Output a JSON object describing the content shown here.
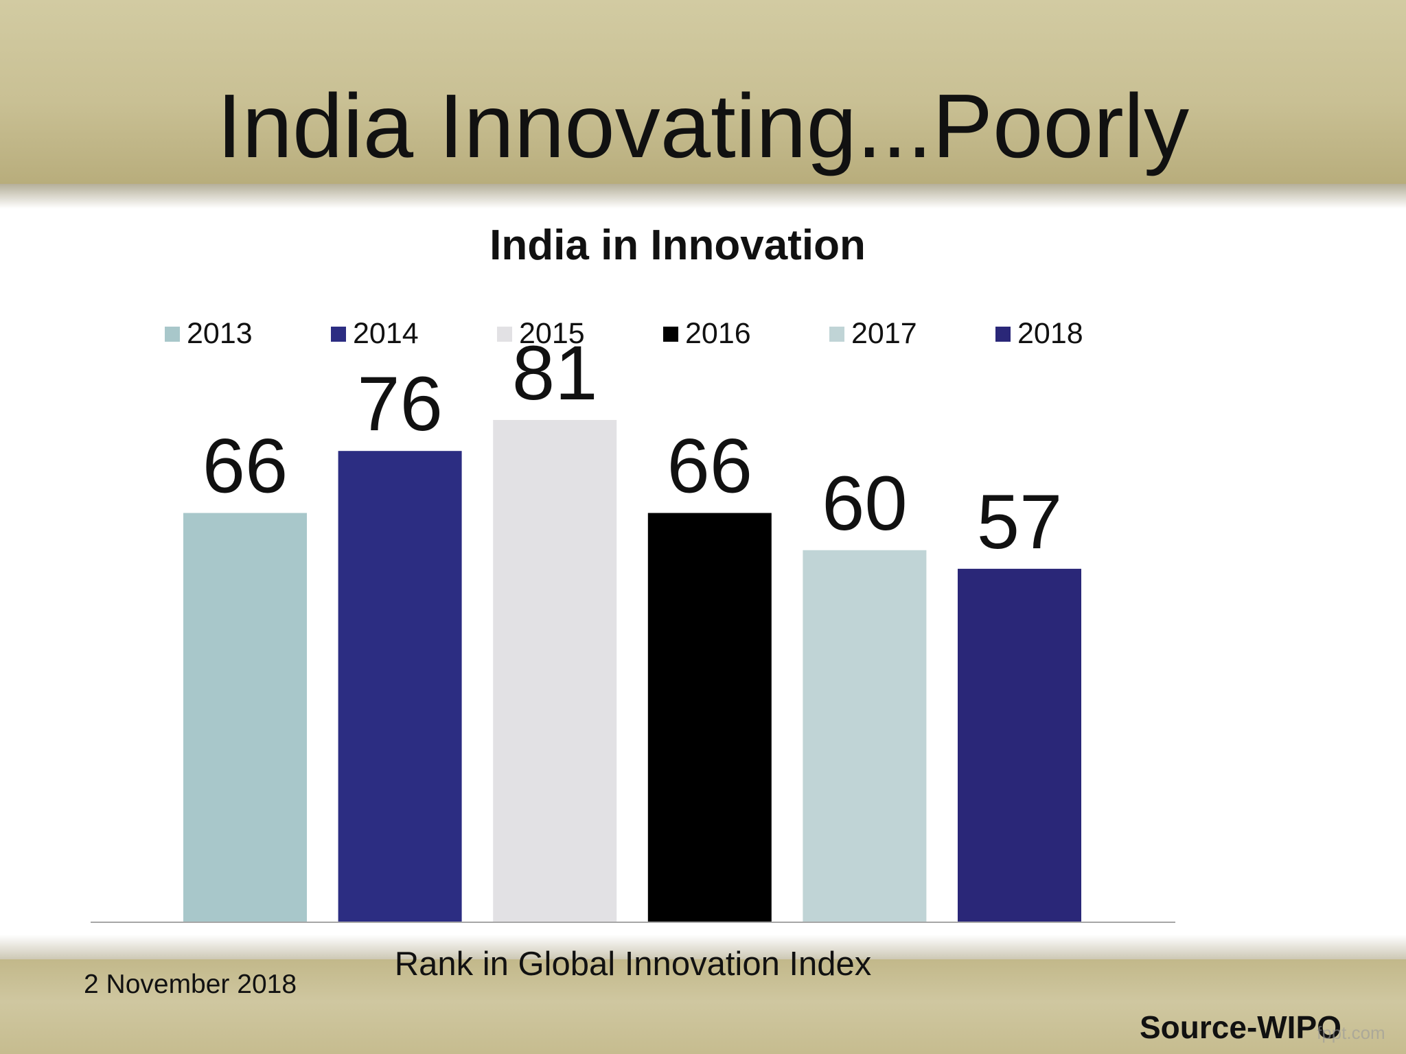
{
  "slide": {
    "title": "India Innovating...Poorly",
    "date": "2 November 2018",
    "source": "Source-WIPO",
    "watermark": "fppt.com"
  },
  "chart_data": {
    "type": "bar",
    "title": "India in Innovation",
    "xlabel": "Rank in Global Innovation Index",
    "ylabel": "",
    "legend_position": "top",
    "grid": false,
    "ylim": [
      0,
      81
    ],
    "series": [
      {
        "name": "2013",
        "value": 66,
        "color": "#a8c7ca"
      },
      {
        "name": "2014",
        "value": 76,
        "color": "#2c2d82"
      },
      {
        "name": "2015",
        "value": 81,
        "color": "#e2e1e4"
      },
      {
        "name": "2016",
        "value": 66,
        "color": "#000000"
      },
      {
        "name": "2017",
        "value": 60,
        "color": "#c0d4d6"
      },
      {
        "name": "2018",
        "value": 57,
        "color": "#2a2778"
      }
    ]
  }
}
